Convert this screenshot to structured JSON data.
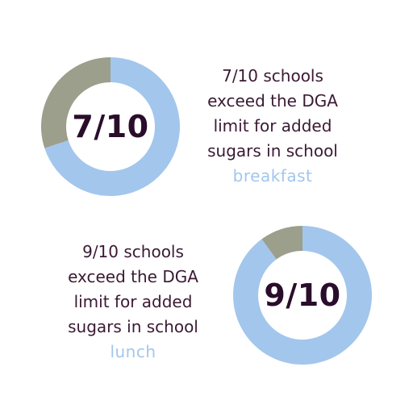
{
  "chart_data": [
    {
      "type": "pie",
      "center_label": "7/10",
      "slices": [
        {
          "value": 7,
          "color": "#a3c6ec"
        },
        {
          "value": 3,
          "color": "#9b9f8b"
        }
      ],
      "caption": {
        "lines": [
          "7/10 schools",
          "exceed the DGA",
          "limit for added",
          "sugars in school"
        ],
        "meal": "breakfast"
      }
    },
    {
      "type": "pie",
      "center_label": "9/10",
      "slices": [
        {
          "value": 9,
          "color": "#a3c6ec"
        },
        {
          "value": 1,
          "color": "#9b9f8b"
        }
      ],
      "caption": {
        "lines": [
          "9/10 schools",
          "exceed the DGA",
          "limit for added",
          "sugars in school"
        ],
        "meal": "lunch"
      }
    }
  ]
}
